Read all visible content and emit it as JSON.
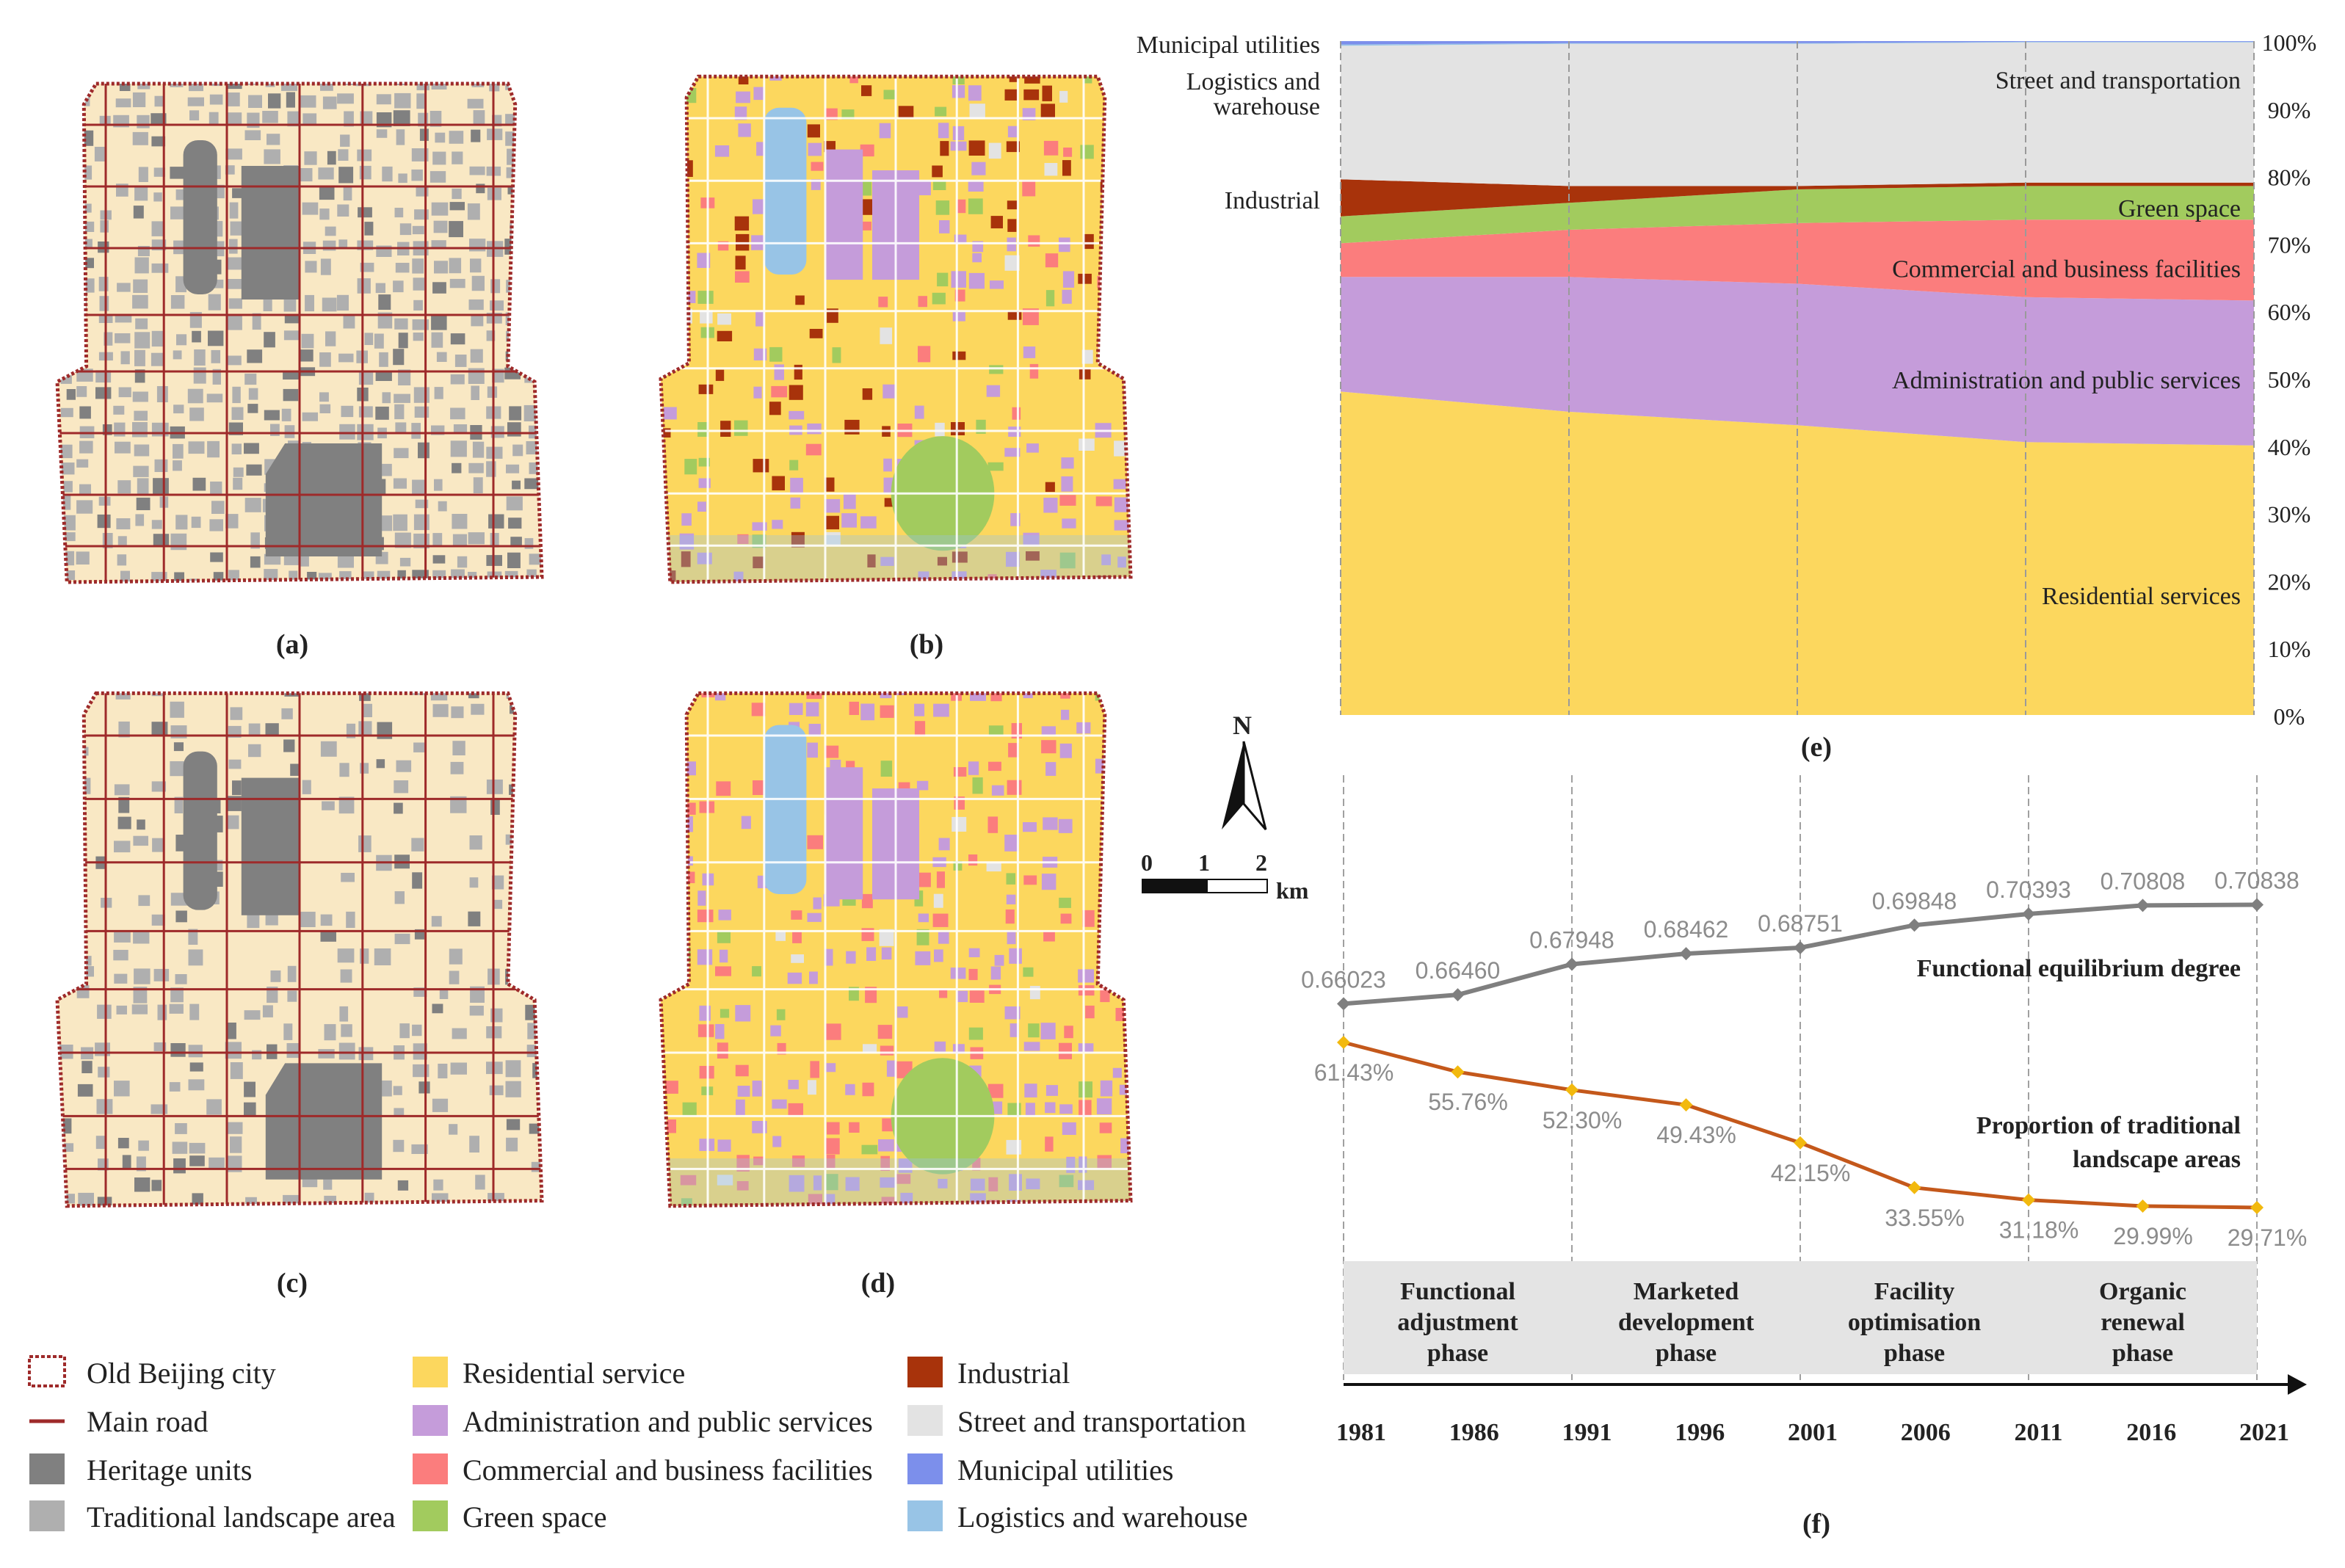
{
  "colors": {
    "residential": "#FCD75E",
    "admin": "#C59CDA",
    "commercial": "#FB7D7D",
    "green": "#A2CB5E",
    "industrial": "#A8330B",
    "street": "#E3E3E3",
    "utilities": "#7C8FEB",
    "logistics": "#98C4E6",
    "heritage": "#808080",
    "traditional": "#AFAFAF",
    "base": "#F9E8C4",
    "road": "#9E2A2A",
    "eq_line": "#7F7F7F",
    "trad_line": "#C4581B",
    "trad_marker": "#F2B90E"
  },
  "panel_labels": {
    "a": "(a)",
    "b": "(b)",
    "c": "(c)",
    "d": "(d)",
    "e": "(e)",
    "f": "(f)"
  },
  "north_arrow": {
    "letter": "N"
  },
  "scale_bar": {
    "ticks": [
      "0",
      "1",
      "2"
    ],
    "unit": "km"
  },
  "legend": {
    "col1": [
      {
        "label": "Old Beijing city",
        "swatch": "old-city"
      },
      {
        "label": "Main road",
        "swatch": "road"
      },
      {
        "label": "Heritage units",
        "swatch": "heritage"
      },
      {
        "label": "Traditional landscape area",
        "swatch": "traditional"
      }
    ],
    "col2": [
      {
        "label": "Residential service",
        "swatch": "residential"
      },
      {
        "label": "Administration and public services",
        "swatch": "admin"
      },
      {
        "label": "Commercial and business facilities",
        "swatch": "commercial"
      },
      {
        "label": "Green space",
        "swatch": "green"
      }
    ],
    "col3": [
      {
        "label": "Industrial",
        "swatch": "industrial"
      },
      {
        "label": "Street and transportation",
        "swatch": "street"
      },
      {
        "label": "Municipal utilities",
        "swatch": "utilities"
      },
      {
        "label": "Logistics and warehouse",
        "swatch": "logistics"
      }
    ]
  },
  "chart_data": [
    {
      "type": "area",
      "stacked": true,
      "x": [
        1981,
        1991,
        2001,
        2011,
        2021
      ],
      "ylim": [
        0,
        100
      ],
      "yticks": [
        "0%",
        "10%",
        "20%",
        "30%",
        "40%",
        "50%",
        "60%",
        "70%",
        "80%",
        "90%",
        "100%"
      ],
      "y_axis_side": "right",
      "grid": "vertical dashed",
      "series": [
        {
          "name": "Residential services",
          "key": "residential",
          "values": [
            48,
            45,
            43,
            40.5,
            40
          ]
        },
        {
          "name": "Administration and public services",
          "key": "admin",
          "values": [
            17,
            20,
            21,
            21.5,
            21.5
          ]
        },
        {
          "name": "Commercial and business facilities",
          "key": "commercial",
          "values": [
            5,
            7,
            9,
            11.5,
            12
          ]
        },
        {
          "name": "Green space",
          "key": "green",
          "values": [
            4,
            4,
            5,
            5,
            5
          ]
        },
        {
          "name": "Industrial",
          "key": "industrial",
          "values": [
            5.5,
            2.5,
            0.5,
            0.5,
            0.5
          ]
        },
        {
          "name": "Street and transportation",
          "key": "street",
          "values": [
            19.8,
            21.1,
            21.1,
            20.8,
            20.8
          ]
        },
        {
          "name": "Logistics and warehouse",
          "key": "logistics",
          "values": [
            0.2,
            0.1,
            0.1,
            0.1,
            0.1
          ]
        },
        {
          "name": "Municipal utilities",
          "key": "utilities",
          "values": [
            0.5,
            0.3,
            0.3,
            0.1,
            0.1
          ]
        }
      ],
      "labels_right": [
        "Street and transportation",
        "Green space",
        "Commercial and business facilities",
        "Administration and public services",
        "Residential services"
      ],
      "labels_left": [
        "Municipal utilities",
        "Logistics and warehouse",
        "Industrial"
      ]
    },
    {
      "type": "line",
      "x": [
        1981,
        1986,
        1991,
        1996,
        2001,
        2006,
        2011,
        2016,
        2021
      ],
      "series": [
        {
          "name": "Functional equilibrium degree",
          "values": [
            0.66023,
            0.6646,
            0.67948,
            0.68462,
            0.68751,
            0.69848,
            0.70393,
            0.70808,
            0.70838
          ],
          "labels": [
            "0.66023",
            "0.66460",
            "0.67948",
            "0.68462",
            "0.68751",
            "0.69848",
            "0.70393",
            "0.70808",
            "0.70838"
          ]
        },
        {
          "name": "Proportion of traditional landscape areas",
          "values": [
            61.43,
            55.76,
            52.3,
            49.43,
            42.15,
            33.55,
            31.18,
            29.99,
            29.71
          ],
          "labels": [
            "61.43%",
            "55.76%",
            "52.30%",
            "49.43%",
            "42.15%",
            "33.55%",
            "31.18%",
            "29.99%",
            "29.71%"
          ]
        }
      ],
      "series_labels": [
        "Functional equilibrium degree",
        "Proportion of traditional",
        "landscape areas"
      ],
      "phases": [
        {
          "lines": [
            "Functional",
            "adjustment",
            "phase"
          ]
        },
        {
          "lines": [
            "Marketed",
            "development",
            "phase"
          ]
        },
        {
          "lines": [
            "Facility",
            "optimisation",
            "phase"
          ]
        },
        {
          "lines": [
            "Organic",
            "renewal",
            "phase"
          ]
        }
      ],
      "xtick_labels": [
        "1981",
        "1986",
        "1991",
        "1996",
        "2001",
        "2006",
        "2011",
        "2016",
        "2021"
      ]
    }
  ]
}
